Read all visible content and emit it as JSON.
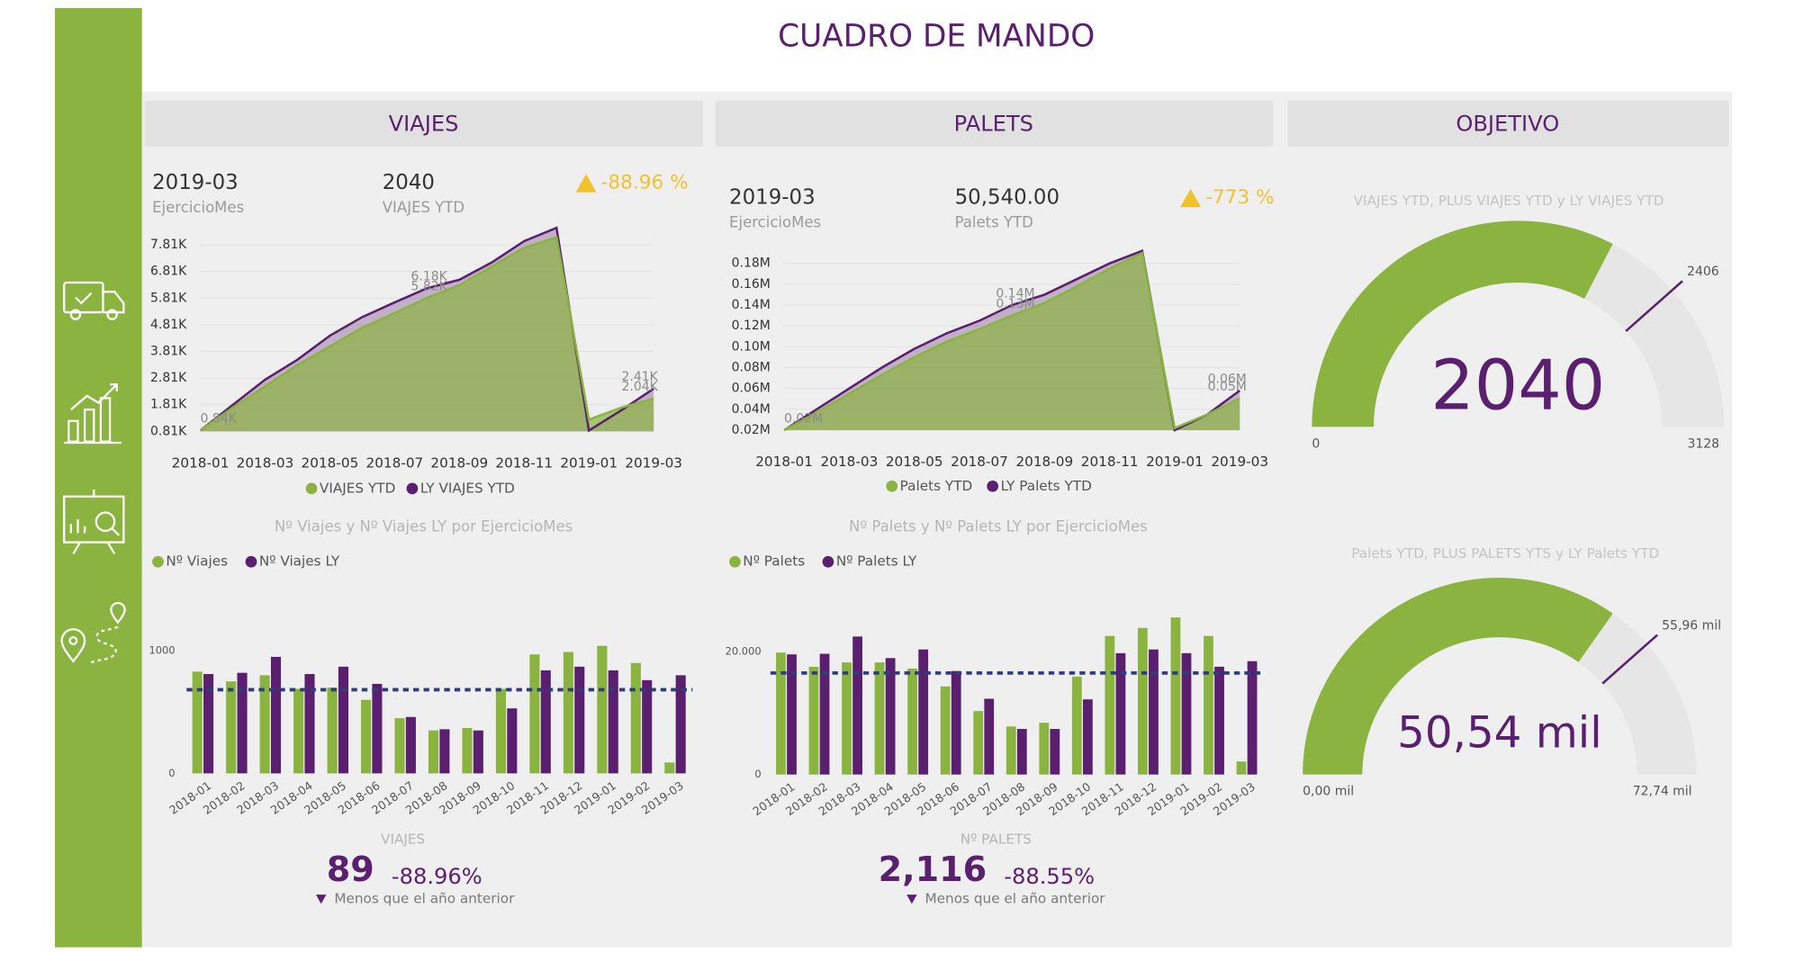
{
  "header": {
    "title": "CUADRO DE MANDO"
  },
  "sections": [
    "VIAJES",
    "PALETS",
    "OBJETIVO"
  ],
  "cards": [
    {
      "period": "2019-03",
      "period_label": "EjercicioMes",
      "total": "2040",
      "total_label": "VIAJES YTD",
      "change": "-88.96 %"
    },
    {
      "period": "2019-03",
      "period_label": "EjercicioMes",
      "total": "50,540.00",
      "total_label": "Palets YTD",
      "change": "-773 %"
    }
  ],
  "summaries": [
    {
      "label": "VIAJES",
      "value": "89",
      "change": "-88.96%",
      "note": "Menos que el año anterior"
    },
    {
      "label": "Nº PALETS",
      "value": "2,116",
      "change": "-88.55%",
      "note": "Menos que el año anterior"
    }
  ],
  "chart_data": [
    {
      "type": "area",
      "categories": [
        "2018-01",
        null,
        "2018-03",
        null,
        "2018-05",
        null,
        "2018-07",
        null,
        "2018-09",
        null,
        "2018-11",
        null,
        "2019-01",
        null,
        "2019-03"
      ],
      "series": [
        {
          "name": "VIAJES YTD",
          "color": "#8ab43f",
          "values": [
            840,
            1700,
            2500,
            3300,
            4000,
            4700,
            5250,
            5820,
            6300,
            7000,
            7700,
            8100,
            1250,
            1700,
            2040
          ],
          "value_labels": [
            "0.84K",
            null,
            null,
            null,
            null,
            null,
            null,
            "5.82K",
            null,
            null,
            null,
            null,
            null,
            null,
            "2.04K"
          ]
        },
        {
          "name": "LY VIAJES YTD",
          "color": "#5b1f6f",
          "values": [
            840,
            1800,
            2750,
            3500,
            4400,
            5100,
            5650,
            6180,
            6500,
            7150,
            7950,
            8450,
            840,
            1600,
            2410
          ],
          "value_labels": [
            null,
            null,
            null,
            null,
            null,
            null,
            null,
            "6.18K",
            null,
            null,
            null,
            null,
            null,
            null,
            "2.41K"
          ]
        }
      ],
      "ylim": [
        810,
        8500
      ],
      "yticks": [
        {
          "value": 810,
          "label": "0.81K"
        },
        {
          "value": 1810,
          "label": "1.81K"
        },
        {
          "value": 2810,
          "label": "2.81K"
        },
        {
          "value": 3810,
          "label": "3.81K"
        },
        {
          "value": 4810,
          "label": "4.81K"
        },
        {
          "value": 5810,
          "label": "5.81K"
        },
        {
          "value": 6810,
          "label": "6.81K"
        },
        {
          "value": 7810,
          "label": "7.81K"
        }
      ],
      "grid": true
    },
    {
      "type": "area",
      "categories": [
        "2018-01",
        null,
        "2018-03",
        null,
        "2018-05",
        null,
        "2018-07",
        null,
        "2018-09",
        null,
        "2018-11",
        null,
        "2019-01",
        null,
        "2019-03"
      ],
      "series": [
        {
          "name": "Palets YTD",
          "color": "#8ab43f",
          "values": [
            20000,
            37000,
            55000,
            73000,
            90000,
            105000,
            117000,
            130000,
            142000,
            158000,
            175000,
            190000,
            22000,
            35000,
            50540
          ],
          "value_labels": [
            "0.02M",
            null,
            null,
            null,
            null,
            null,
            null,
            "0.13M",
            null,
            null,
            null,
            null,
            null,
            null,
            "0.05M"
          ]
        },
        {
          "name": "LY Palets YTD",
          "color": "#5b1f6f",
          "values": [
            20000,
            40000,
            60000,
            80000,
            98000,
            113000,
            125000,
            140000,
            150000,
            165000,
            180000,
            192000,
            20000,
            35000,
            58000
          ],
          "value_labels": [
            null,
            null,
            null,
            null,
            null,
            null,
            null,
            "0.14M",
            null,
            null,
            null,
            null,
            null,
            null,
            "0.06M"
          ]
        }
      ],
      "ylim": [
        20000,
        200000
      ],
      "yticks": [
        {
          "value": 20000,
          "label": "0.02M"
        },
        {
          "value": 40000,
          "label": "0.04M"
        },
        {
          "value": 60000,
          "label": "0.06M"
        },
        {
          "value": 80000,
          "label": "0.08M"
        },
        {
          "value": 100000,
          "label": "0.10M"
        },
        {
          "value": 120000,
          "label": "0.12M"
        },
        {
          "value": 140000,
          "label": "0.14M"
        },
        {
          "value": 160000,
          "label": "0.16M"
        },
        {
          "value": 180000,
          "label": "0.18M"
        }
      ],
      "grid": true
    },
    {
      "type": "bar",
      "title": "Nº Viajes y Nº Viajes LY por EjercicioMes",
      "categories": [
        "2018-01",
        "2018-02",
        "2018-03",
        "2018-04",
        "2018-05",
        "2018-06",
        "2018-07",
        "2018-08",
        "2018-09",
        "2018-10",
        "2018-11",
        "2018-12",
        "2019-01",
        "2019-02",
        "2019-03"
      ],
      "series": [
        {
          "name": "Nº Viajes",
          "color": "#8ab43f",
          "values": [
            830,
            750,
            800,
            690,
            700,
            600,
            450,
            350,
            370,
            690,
            970,
            990,
            1040,
            900,
            89
          ]
        },
        {
          "name": "Nº Viajes LY",
          "color": "#5b1f6f",
          "values": [
            810,
            820,
            950,
            810,
            870,
            730,
            460,
            360,
            350,
            530,
            840,
            870,
            840,
            760,
            800
          ]
        }
      ],
      "ylim": [
        0,
        1250
      ],
      "yticks": [
        0,
        1000
      ],
      "reference_line": 682
    },
    {
      "type": "bar",
      "title": "Nº Palets y Nº Palets LY por EjercicioMes",
      "categories": [
        "2018-01",
        "2018-02",
        "2018-03",
        "2018-04",
        "2018-05",
        "2018-06",
        "2018-07",
        "2018-08",
        "2018-09",
        "2018-10",
        "2018-11",
        "2018-12",
        "2019-01",
        "2019-02",
        "2019-03"
      ],
      "series": [
        {
          "name": "Nº Palets",
          "color": "#8ab43f",
          "values": [
            19800,
            17500,
            18200,
            18200,
            17200,
            14300,
            10300,
            7800,
            8400,
            15900,
            22500,
            23800,
            25500,
            22500,
            2116
          ]
        },
        {
          "name": "Nº Palets LY",
          "color": "#5b1f6f",
          "values": [
            19500,
            19600,
            22400,
            18900,
            20300,
            16800,
            12300,
            7400,
            7400,
            12200,
            19700,
            20300,
            19700,
            17500,
            18400
          ]
        }
      ],
      "ylim": [
        0,
        26000
      ],
      "yticks": [
        0,
        {
          "value": 20000,
          "label": "20.000"
        }
      ],
      "reference_line": 16480
    },
    {
      "type": "gauge",
      "title": "VIAJES YTD, PLUS VIAJES YTD y LY VIAJES YTD",
      "value": 2040,
      "min": 0,
      "max": 3128,
      "target": 2406,
      "color": "#8ab43f",
      "target_color": "#5b1f6f"
    },
    {
      "type": "gauge",
      "title": "Palets YTD, PLUS PALETS YTS y LY Palets YTD",
      "value": 50540,
      "value_label": "50,54 mil",
      "min": {
        "value": 0,
        "label": "0,00 mil"
      },
      "max": {
        "value": 72740,
        "label": "72,74 mil"
      },
      "target": {
        "value": 55960,
        "label": "55,96 mil"
      },
      "color": "#8ab43f",
      "target_color": "#5b1f6f"
    }
  ]
}
